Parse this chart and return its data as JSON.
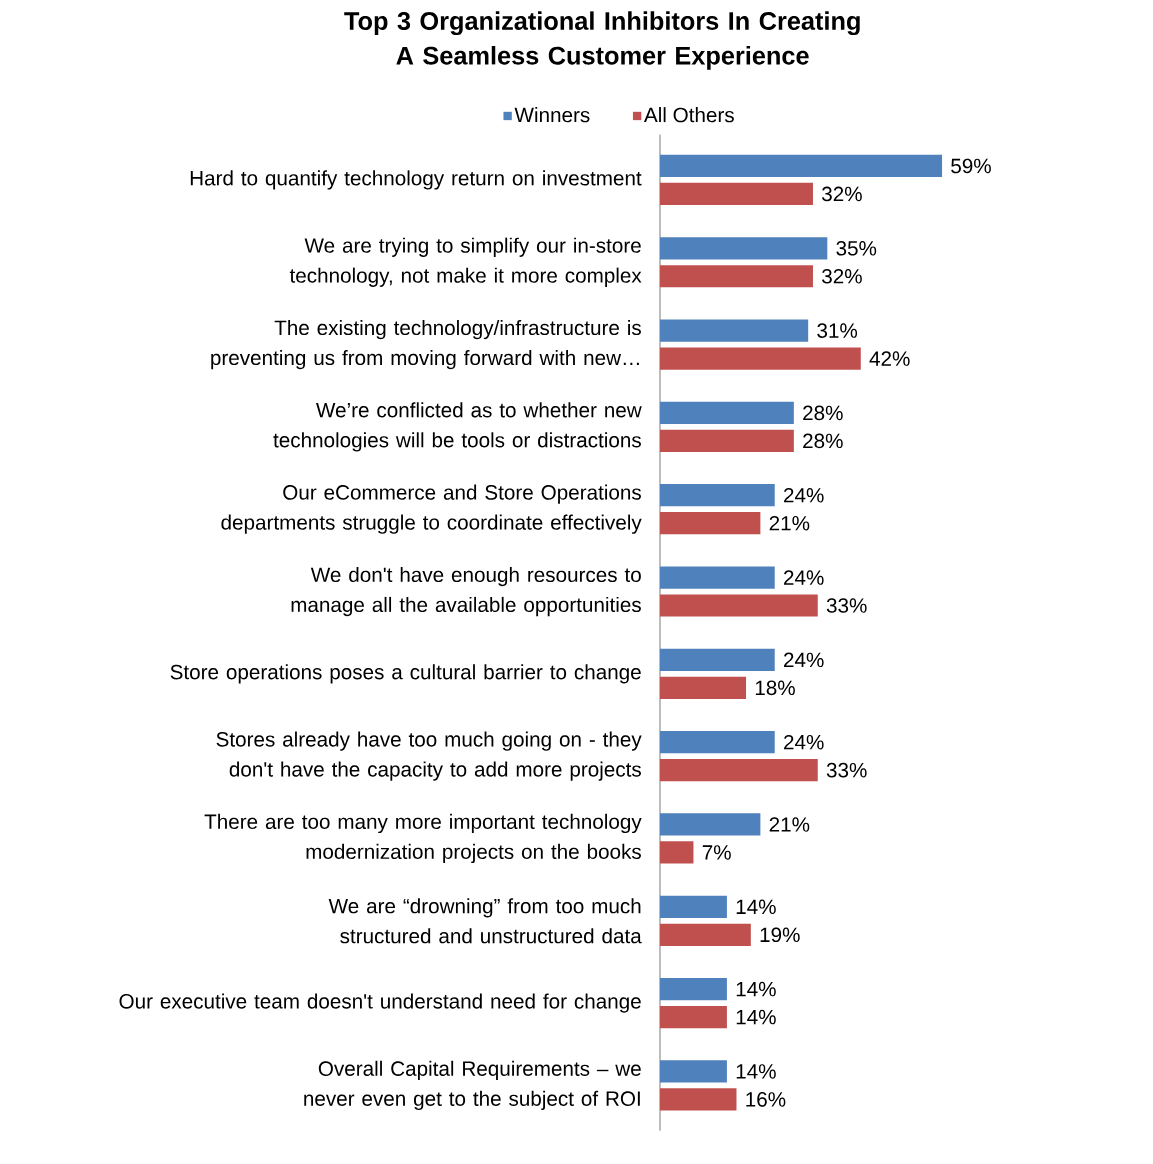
{
  "chart_data": {
    "type": "bar",
    "orientation": "horizontal",
    "title": "Top 3 Organizational Inhibitors In Creating A Seamless Customer Experience",
    "categories": [
      "Hard to quantify technology return on investment",
      "We are trying to simplify our in-store technology, not make it more complex",
      "The existing technology/infrastructure is preventing us from moving forward with new…",
      "We’re conflicted as to whether new technologies will be tools or distractions",
      "Our eCommerce and Store Operations departments struggle to coordinate effectively",
      "We don't have enough resources to manage all the available opportunities",
      "Store operations poses a cultural barrier to change",
      "Stores already have too much going on - they don't have the capacity to add more projects",
      "There are too many more important technology modernization projects on the books",
      "We are “drowning” from too much structured and unstructured data",
      "Our executive team doesn't understand need for change",
      "Overall Capital Requirements – we never even get to the subject of ROI"
    ],
    "series": [
      {
        "name": "Winners",
        "color": "#4f81bd",
        "values": [
          59,
          35,
          31,
          28,
          24,
          24,
          24,
          24,
          21,
          14,
          14,
          14
        ],
        "value_labels": [
          "59%",
          "35%",
          "31%",
          "28%",
          "24%",
          "24%",
          "24%",
          "24%",
          "21%",
          "14%",
          "14%",
          "14%"
        ]
      },
      {
        "name": "All Others",
        "color": "#c0504d",
        "values": [
          32,
          32,
          42,
          28,
          21,
          33,
          18,
          33,
          7,
          19,
          14,
          16
        ],
        "value_labels": [
          "32%",
          "32%",
          "42%",
          "28%",
          "21%",
          "33%",
          "18%",
          "33%",
          "7%",
          "19%",
          "14%",
          "16%"
        ]
      }
    ],
    "legend": "top"
  }
}
